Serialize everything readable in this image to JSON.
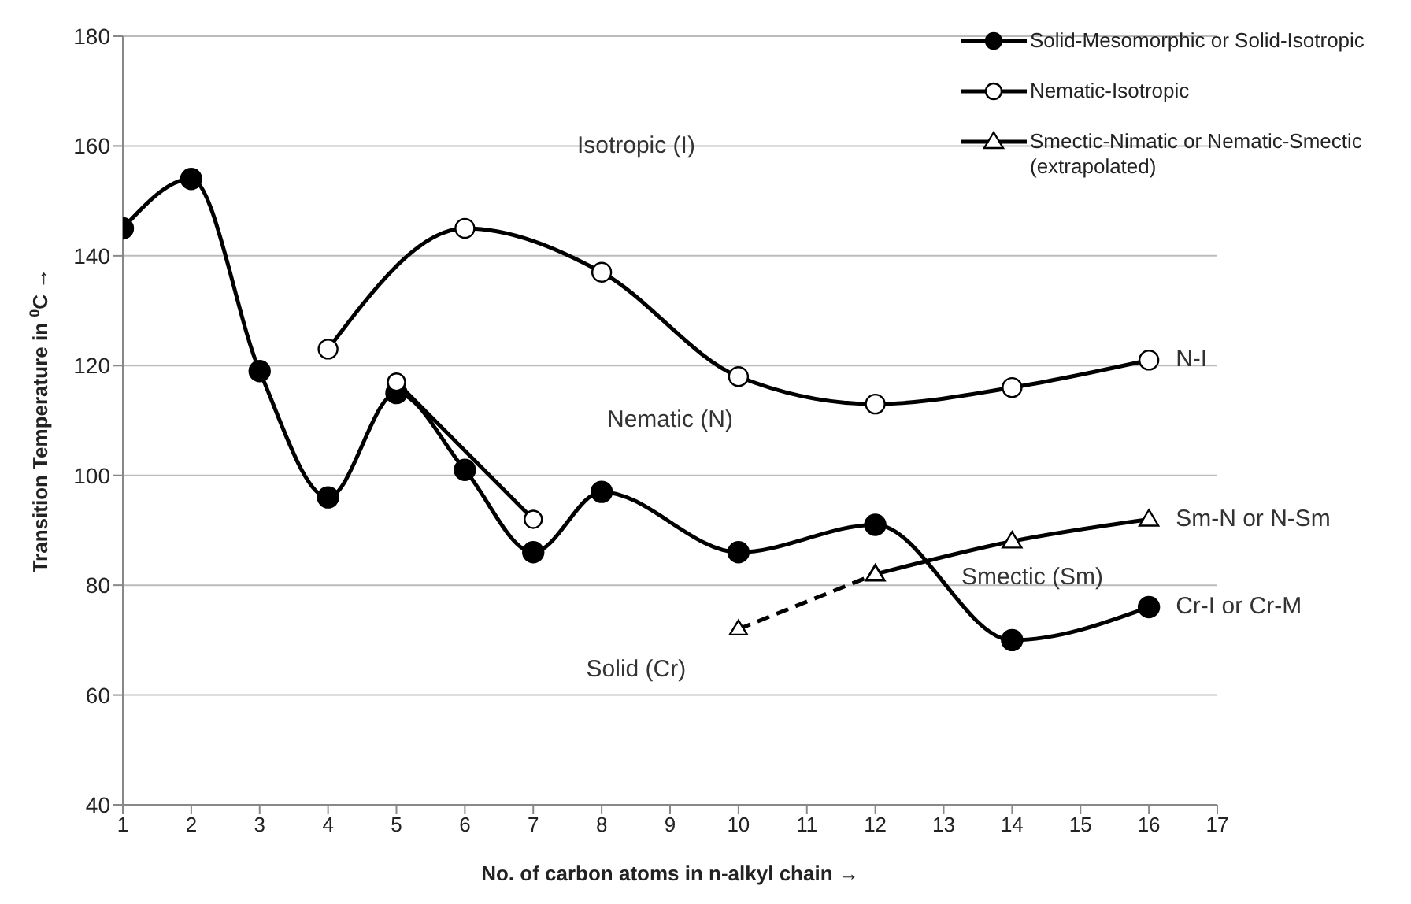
{
  "chart_data": {
    "type": "line",
    "xlabel": "No. of carbon atoms in n-alkyl chain →",
    "ylabel": "Transition Temperature in $^{0}$C →",
    "xlim": [
      1,
      17
    ],
    "xticks": [
      1,
      2,
      3,
      4,
      5,
      6,
      7,
      8,
      9,
      10,
      11,
      12,
      13,
      14,
      15,
      16,
      17
    ],
    "ylim": [
      40,
      180
    ],
    "yticks": [
      40,
      60,
      80,
      100,
      120,
      140,
      160,
      180
    ],
    "grid": "y",
    "legend": "top right",
    "marker": "circle",
    "line_style": "solid",
    "series": [
      {
        "name": "Solid-Mesomorphic or Solid-Isotropic",
        "color": "#000000",
        "x": [
          1,
          2,
          3,
          4,
          5,
          6,
          7,
          8,
          10,
          12,
          14,
          16
        ],
        "values": [
          145,
          154,
          119,
          96,
          115,
          101,
          86,
          97,
          86,
          91,
          70,
          76
        ]
      },
      {
        "name": "Nematic-Isotropic",
        "color": "#000000",
        "x": [
          4,
          6,
          8,
          10,
          12,
          14,
          16
        ],
        "values": [
          123,
          145,
          137,
          118,
          113,
          116,
          121
        ]
      },
      {
        "color": "#000000",
        "x": [
          5,
          7
        ],
        "values": [
          117,
          92
        ]
      },
      {
        "name": "Smectic-Nimatic or Nematic-Smectic (extrapolated)",
        "color": "#000000",
        "marker": "triangle",
        "x": [
          12,
          14,
          16
        ],
        "values": [
          82,
          88,
          92
        ]
      },
      {
        "color": "#000000",
        "marker": "triangle",
        "line_style": "dashed",
        "x": [
          10,
          12
        ],
        "values": [
          72,
          82
        ]
      }
    ],
    "annotations": [
      "Isotropic (I)",
      "Nematic (N)",
      "Smectic (Sm)",
      "Solid (Cr)",
      "N-I",
      "Sm-N or N-Sm",
      "Cr-I or Cr-M"
    ]
  }
}
